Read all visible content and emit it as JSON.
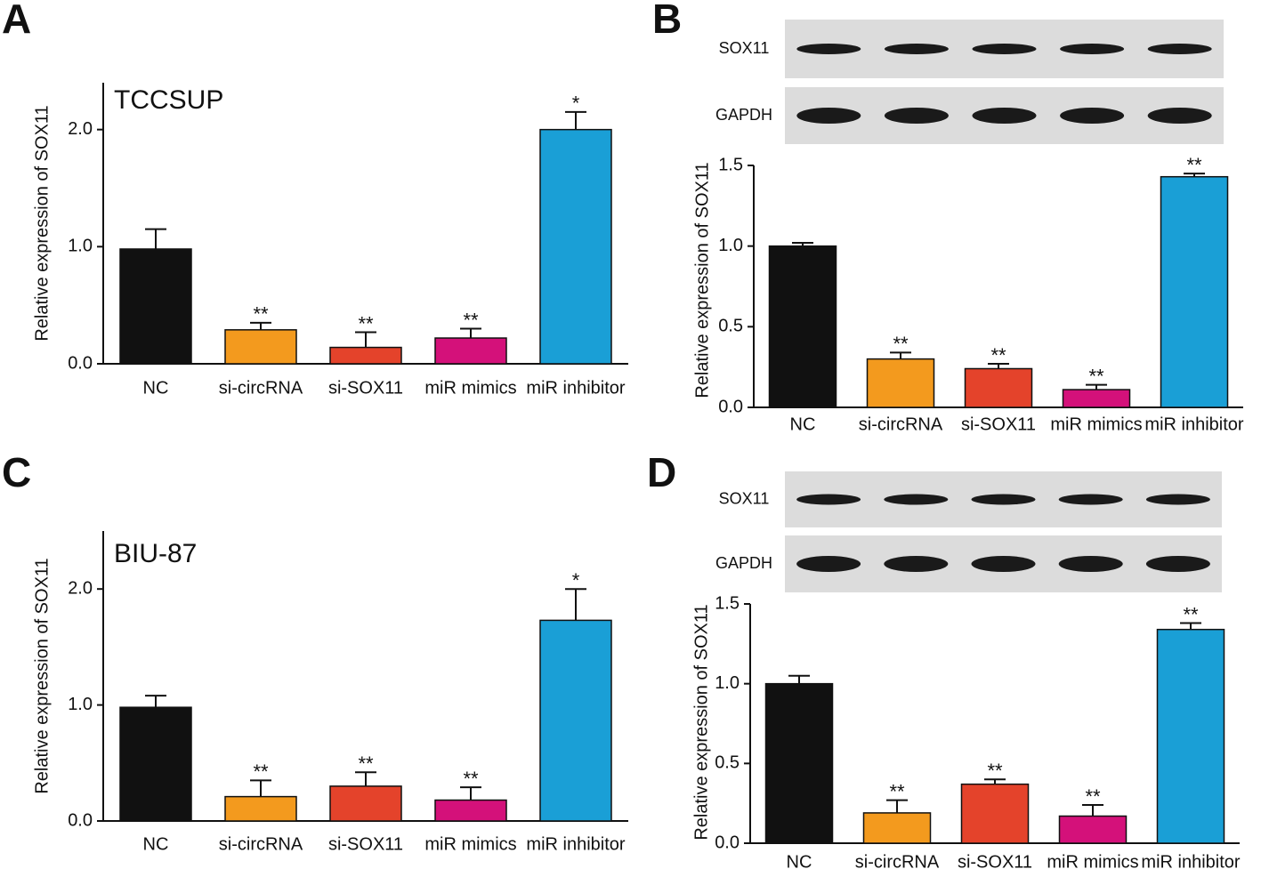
{
  "chart_data": [
    {
      "type": "bar",
      "panel": "A",
      "cell_line": "TCCSUP",
      "y_label": "Relative expression of SOX11",
      "categories": [
        "NC",
        "si-circRNA",
        "si-SOX11",
        "miR mimics",
        "miR inhibitor"
      ],
      "values": [
        0.98,
        0.29,
        0.14,
        0.22,
        2.0
      ],
      "errors": [
        0.17,
        0.06,
        0.13,
        0.08,
        0.15
      ],
      "significance": [
        null,
        "**",
        "**",
        "**",
        "*"
      ],
      "colors": [
        "#111111",
        "#f39a1e",
        "#e4432b",
        "#d4117a",
        "#1a9fd6"
      ],
      "ylim": [
        0,
        2.4
      ],
      "yticks": [
        {
          "value": 0,
          "label": "0.0"
        },
        {
          "value": 1,
          "label": "1.0"
        },
        {
          "value": 2,
          "label": "2.0"
        }
      ]
    },
    {
      "type": "bar",
      "panel": "B",
      "blot_labels": [
        "SOX11",
        "GAPDH"
      ],
      "y_label": "Relative expression of SOX11",
      "categories": [
        "NC",
        "si-circRNA",
        "si-SOX11",
        "miR mimics",
        "miR inhibitor"
      ],
      "values": [
        1.0,
        0.3,
        0.24,
        0.11,
        1.43
      ],
      "errors": [
        0.02,
        0.04,
        0.03,
        0.03,
        0.02
      ],
      "significance": [
        null,
        "**",
        "**",
        "**",
        "**"
      ],
      "colors": [
        "#111111",
        "#f39a1e",
        "#e4432b",
        "#d4117a",
        "#1a9fd6"
      ],
      "ylim": [
        0,
        1.5
      ],
      "yticks": [
        {
          "value": 0,
          "label": "0.0"
        },
        0.5,
        {
          "value": 1,
          "label": "1.0"
        },
        1.5
      ]
    },
    {
      "type": "bar",
      "panel": "C",
      "cell_line": "BIU-87",
      "y_label": "Relative expression of SOX11",
      "categories": [
        "NC",
        "si-circRNA",
        "si-SOX11",
        "miR mimics",
        "miR inhibitor"
      ],
      "values": [
        0.98,
        0.21,
        0.3,
        0.18,
        1.73
      ],
      "errors": [
        0.1,
        0.14,
        0.12,
        0.11,
        0.27
      ],
      "significance": [
        null,
        "**",
        "**",
        "**",
        "*"
      ],
      "colors": [
        "#111111",
        "#f39a1e",
        "#e4432b",
        "#d4117a",
        "#1a9fd6"
      ],
      "ylim": [
        0,
        2.5
      ],
      "yticks": [
        {
          "value": 0,
          "label": "0.0"
        },
        {
          "value": 1,
          "label": "1.0"
        },
        {
          "value": 2,
          "label": "2.0"
        }
      ]
    },
    {
      "type": "bar",
      "panel": "D",
      "blot_labels": [
        "SOX11",
        "GAPDH"
      ],
      "y_label": "Relative expression of SOX11",
      "categories": [
        "NC",
        "si-circRNA",
        "si-SOX11",
        "miR mimics",
        "miR inhibitor"
      ],
      "values": [
        1.0,
        0.19,
        0.37,
        0.17,
        1.34
      ],
      "errors": [
        0.05,
        0.08,
        0.03,
        0.07,
        0.04
      ],
      "significance": [
        null,
        "**",
        "**",
        "**",
        "**"
      ],
      "colors": [
        "#111111",
        "#f39a1e",
        "#e4432b",
        "#d4117a",
        "#1a9fd6"
      ],
      "ylim": [
        0,
        1.5
      ],
      "yticks": [
        {
          "value": 0,
          "label": "0.0"
        },
        0.5,
        {
          "value": 1,
          "label": "1.0"
        },
        1.5
      ]
    }
  ]
}
